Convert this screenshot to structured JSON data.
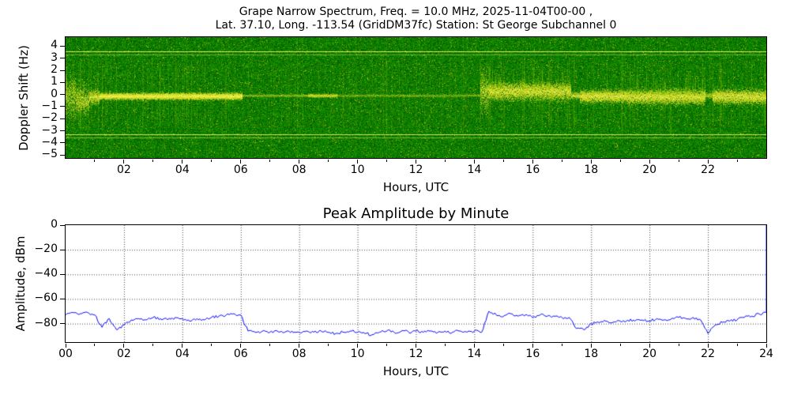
{
  "figure": {
    "background_color": "#ffffff"
  },
  "chart_data": [
    {
      "type": "heatmap",
      "title_line1": "Grape Narrow Spectrum, Freq. = 10.0 MHz, 2025-11-04T00-00 ,",
      "title_line2": "Lat.  37.10, Long. -113.54 (GridDM37fc) Station: St George Subchannel 0",
      "xlabel": "Hours, UTC",
      "ylabel": "Doppler Shift (Hz)",
      "xlim": [
        0,
        24
      ],
      "ylim": [
        -5.25,
        4.75
      ],
      "xticks": [
        {
          "v": 2,
          "label": "02"
        },
        {
          "v": 4,
          "label": "04"
        },
        {
          "v": 6,
          "label": "06"
        },
        {
          "v": 8,
          "label": "08"
        },
        {
          "v": 10,
          "label": "10"
        },
        {
          "v": 12,
          "label": "12"
        },
        {
          "v": 14,
          "label": "14"
        },
        {
          "v": 16,
          "label": "16"
        },
        {
          "v": 18,
          "label": "18"
        },
        {
          "v": 20,
          "label": "20"
        },
        {
          "v": 22,
          "label": "22"
        }
      ],
      "yticks": [
        {
          "v": 4,
          "label": "4"
        },
        {
          "v": 3,
          "label": "3"
        },
        {
          "v": 2,
          "label": "2"
        },
        {
          "v": 1,
          "label": "1"
        },
        {
          "v": 0,
          "label": "0"
        },
        {
          "v": -1,
          "label": "−1"
        },
        {
          "v": -2,
          "label": "−2"
        },
        {
          "v": -3,
          "label": "−3"
        },
        {
          "v": -4,
          "label": "−4"
        },
        {
          "v": -5,
          "label": "−5"
        }
      ],
      "colormap_background": "#007d00",
      "trace_color": "#ffff00",
      "reference_lines": [
        {
          "hz": 3.55,
          "alpha": 0.85
        },
        {
          "hz": 3.3,
          "alpha": 0.4
        },
        {
          "hz": -3.35,
          "alpha": 0.8
        },
        {
          "hz": -3.6,
          "alpha": 0.45
        }
      ],
      "segments": [
        {
          "t0": 0.0,
          "t1": 0.35,
          "center": -0.2,
          "spread": 1.5,
          "intensity": 0.9,
          "spiky": true
        },
        {
          "t0": 0.35,
          "t1": 0.8,
          "center": -0.5,
          "spread": 1.0,
          "intensity": 0.85,
          "spiky": true
        },
        {
          "t0": 0.8,
          "t1": 1.15,
          "center": -0.2,
          "spread": 0.5,
          "intensity": 0.8,
          "spiky": true
        },
        {
          "t0": 1.15,
          "t1": 6.05,
          "center": -0.15,
          "spread": 0.22,
          "intensity": 0.9,
          "spiky": false
        },
        {
          "t0": 6.05,
          "t1": 8.3,
          "center": -0.1,
          "spread": 0.1,
          "intensity": 0.18,
          "spiky": false
        },
        {
          "t0": 8.3,
          "t1": 9.3,
          "center": -0.1,
          "spread": 0.12,
          "intensity": 0.4,
          "spiky": false
        },
        {
          "t0": 9.3,
          "t1": 14.2,
          "center": -0.1,
          "spread": 0.1,
          "intensity": 0.15,
          "spiky": false
        },
        {
          "t0": 14.2,
          "t1": 14.45,
          "center": 0.2,
          "spread": 1.4,
          "intensity": 0.95,
          "spiky": true
        },
        {
          "t0": 14.45,
          "t1": 17.3,
          "center": 0.25,
          "spread": 0.6,
          "intensity": 0.95,
          "spiky": true
        },
        {
          "t0": 17.3,
          "t1": 17.6,
          "center": -0.1,
          "spread": 0.25,
          "intensity": 0.5,
          "spiky": false
        },
        {
          "t0": 17.6,
          "t1": 19.2,
          "center": -0.15,
          "spread": 0.45,
          "intensity": 0.9,
          "spiky": false
        },
        {
          "t0": 19.2,
          "t1": 21.9,
          "center": -0.2,
          "spread": 0.5,
          "intensity": 0.9,
          "spiky": true
        },
        {
          "t0": 21.9,
          "t1": 22.15,
          "center": -0.1,
          "spread": 0.2,
          "intensity": 0.4,
          "spiky": false
        },
        {
          "t0": 22.15,
          "t1": 23.9,
          "center": -0.2,
          "spread": 0.5,
          "intensity": 0.9,
          "spiky": false
        },
        {
          "t0": 23.9,
          "t1": 24.0,
          "center": -0.2,
          "spread": 0.4,
          "intensity": 0.8,
          "spiky": false
        }
      ],
      "vertical_streaks": 240
    },
    {
      "type": "line",
      "title": "Peak Amplitude by Minute",
      "xlabel": "Hours, UTC",
      "ylabel": "Amplitude, dBm",
      "xlim": [
        0,
        24
      ],
      "ylim": [
        -95,
        0
      ],
      "xticks": [
        {
          "v": 0,
          "label": "00"
        },
        {
          "v": 2,
          "label": "02"
        },
        {
          "v": 4,
          "label": "04"
        },
        {
          "v": 6,
          "label": "06"
        },
        {
          "v": 8,
          "label": "08"
        },
        {
          "v": 10,
          "label": "10"
        },
        {
          "v": 12,
          "label": "12"
        },
        {
          "v": 14,
          "label": "14"
        },
        {
          "v": 16,
          "label": "16"
        },
        {
          "v": 18,
          "label": "18"
        },
        {
          "v": 20,
          "label": "20"
        },
        {
          "v": 22,
          "label": "22"
        },
        {
          "v": 24,
          "label": "24"
        }
      ],
      "yticks": [
        {
          "v": 0,
          "label": "0"
        },
        {
          "v": -20,
          "label": "−20"
        },
        {
          "v": -40,
          "label": "−40"
        },
        {
          "v": -60,
          "label": "−60"
        },
        {
          "v": -80,
          "label": "−80"
        }
      ],
      "grid": "dotted",
      "line_color": "#0000ff",
      "jitter_db": 1.2,
      "series": [
        {
          "name": "Peak amplitude",
          "x_start": 0,
          "x_step": 0.25,
          "y": [
            -73,
            -71,
            -72,
            -71,
            -73,
            -83,
            -76,
            -85,
            -81,
            -77,
            -76,
            -77,
            -75,
            -76,
            -77,
            -75,
            -76,
            -78,
            -76,
            -77,
            -75,
            -74,
            -73,
            -72,
            -73,
            -86,
            -87,
            -86,
            -87,
            -86,
            -87,
            -86,
            -87,
            -86,
            -87,
            -86,
            -87,
            -88,
            -87,
            -86,
            -87,
            -88,
            -89,
            -87,
            -86,
            -87,
            -86,
            -87,
            -86,
            -87,
            -86,
            -87,
            -86,
            -87,
            -86,
            -87,
            -86,
            -87,
            -70,
            -73,
            -74,
            -72,
            -74,
            -73,
            -75,
            -73,
            -74,
            -74,
            -75,
            -75,
            -84,
            -85,
            -80,
            -79,
            -78,
            -79,
            -78,
            -77,
            -78,
            -77,
            -78,
            -76,
            -77,
            -76,
            -75,
            -76,
            -75,
            -77,
            -88,
            -81,
            -79,
            -78,
            -77,
            -75,
            -74,
            -72,
            -71
          ]
        }
      ],
      "right_edge_spike": {
        "x": 24,
        "y": 0
      }
    }
  ]
}
